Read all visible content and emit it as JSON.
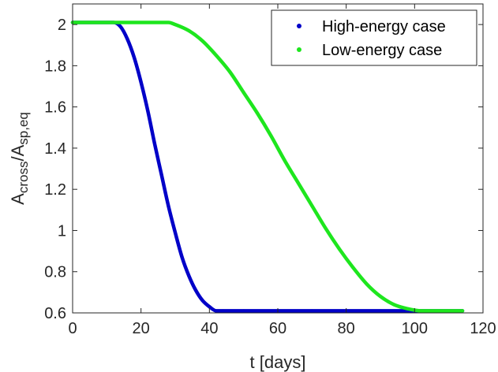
{
  "chart_data": {
    "type": "line",
    "xlabel": "t [days]",
    "ylabel_parts": [
      {
        "text": "A",
        "sub": false
      },
      {
        "text": "cross",
        "sub": true
      },
      {
        "text": "/A",
        "sub": false
      },
      {
        "text": "sp,eq",
        "sub": true
      }
    ],
    "xlim": [
      0,
      120
    ],
    "ylim": [
      0.6,
      2.1
    ],
    "xticks": [
      0,
      20,
      40,
      60,
      80,
      100,
      120
    ],
    "yticks": [
      0.6,
      0.8,
      1,
      1.2,
      1.4,
      1.6,
      1.8,
      2
    ],
    "xtick_labels": [
      "0",
      "20",
      "40",
      "60",
      "80",
      "100",
      "120"
    ],
    "ytick_labels": [
      "0.6",
      "0.8",
      "1",
      "1.2",
      "1.4",
      "1.6",
      "1.8",
      "2"
    ],
    "grid": false,
    "legend_position": "top-right",
    "series": [
      {
        "name": "High-energy case",
        "color": "#0000c8",
        "marker": "dot",
        "x": [
          0,
          12,
          14,
          16,
          18,
          20,
          22,
          24,
          26,
          28,
          30,
          32,
          34,
          36,
          38,
          40,
          42,
          44,
          50,
          60,
          70,
          80,
          90,
          100,
          110,
          114
        ],
        "y": [
          2.01,
          2.01,
          1.99,
          1.93,
          1.84,
          1.72,
          1.58,
          1.42,
          1.27,
          1.12,
          0.99,
          0.87,
          0.78,
          0.71,
          0.66,
          0.63,
          0.61,
          0.61,
          0.61,
          0.61,
          0.61,
          0.61,
          0.61,
          0.61,
          0.61,
          0.61
        ]
      },
      {
        "name": "Low-energy case",
        "color": "#1ee61e",
        "marker": "dot",
        "x": [
          0,
          10,
          20,
          28,
          30,
          34,
          38,
          42,
          46,
          50,
          54,
          58,
          62,
          66,
          70,
          74,
          78,
          82,
          86,
          90,
          94,
          98,
          102,
          104,
          110,
          114
        ],
        "y": [
          2.01,
          2.01,
          2.01,
          2.01,
          2.0,
          1.97,
          1.92,
          1.85,
          1.77,
          1.67,
          1.57,
          1.46,
          1.34,
          1.23,
          1.12,
          1.01,
          0.91,
          0.82,
          0.74,
          0.68,
          0.64,
          0.62,
          0.61,
          0.61,
          0.61,
          0.61
        ]
      }
    ]
  }
}
